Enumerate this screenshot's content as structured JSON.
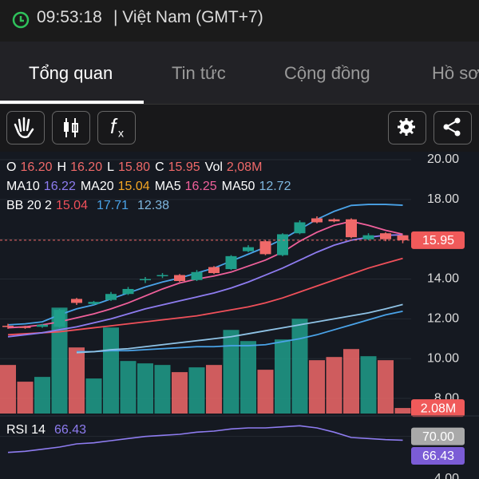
{
  "status_bar": {
    "time": "09:53:18",
    "zone": "| Việt Nam (GMT+7)"
  },
  "tabs": [
    "Tổng quan",
    "Tin tức",
    "Cộng đồng",
    "Hồ sơ"
  ],
  "chart_data": {
    "type": "candlestick",
    "legend": [
      [
        {
          "label": "O",
          "value": "16.20",
          "color": "#f06969"
        },
        {
          "label": "H",
          "value": "16.20",
          "color": "#f06969"
        },
        {
          "label": "L",
          "value": "15.80",
          "color": "#f06969"
        },
        {
          "label": "C",
          "value": "15.95",
          "color": "#f06969"
        },
        {
          "label": "Vol",
          "value": "2,08M",
          "color": "#f06969"
        }
      ],
      [
        {
          "label": "MA10",
          "value": "16.22",
          "color": "#8e7cf0"
        },
        {
          "label": "MA20",
          "value": "15.04",
          "color": "#f5a623"
        },
        {
          "label": "MA5",
          "value": "16.25",
          "color": "#f0609b"
        },
        {
          "label": "MA50",
          "value": "12.72",
          "color": "#7fb8e0"
        }
      ],
      [
        {
          "label": "BB 20 2",
          "value": "15.04",
          "color": "#f0505a"
        },
        {
          "label": "",
          "value": "17.71",
          "color": "#4aa3e8"
        },
        {
          "label": "",
          "value": "12.38",
          "color": "#7fb8e0"
        }
      ]
    ],
    "open": [
      11.65,
      11.6,
      11.6,
      11.6,
      13.0,
      12.75,
      12.95,
      13.25,
      13.95,
      14.15,
      14.2,
      13.95,
      14.6,
      14.5,
      15.4,
      15.9,
      15.2,
      16.3,
      17.05,
      17.0,
      17.0,
      16.0,
      16.3,
      16.2
    ],
    "close": [
      11.6,
      11.55,
      11.7,
      12.45,
      12.8,
      12.85,
      13.25,
      13.5,
      14.0,
      14.2,
      13.9,
      14.35,
      14.3,
      15.15,
      15.6,
      15.25,
      16.25,
      16.85,
      16.85,
      16.9,
      16.1,
      16.2,
      16.0,
      15.95
    ],
    "high": [
      11.75,
      11.65,
      11.75,
      12.5,
      13.05,
      12.9,
      13.35,
      13.6,
      14.1,
      14.3,
      14.25,
      14.45,
      14.65,
      15.2,
      15.7,
      15.95,
      16.3,
      16.95,
      17.15,
      17.05,
      17.05,
      16.3,
      16.35,
      16.2
    ],
    "low": [
      11.5,
      11.5,
      11.55,
      11.55,
      12.7,
      12.7,
      12.9,
      13.2,
      13.8,
      14.05,
      13.85,
      13.9,
      14.25,
      14.45,
      15.35,
      15.2,
      15.15,
      16.25,
      16.8,
      16.85,
      16.05,
      15.95,
      15.9,
      15.8
    ],
    "volume": [
      18.3,
      12.0,
      13.8,
      39.9,
      24.9,
      13.2,
      32.4,
      19.8,
      18.9,
      18.3,
      15.6,
      17.4,
      18.3,
      31.5,
      27.3,
      16.5,
      27.9,
      35.7,
      20.1,
      21.3,
      24.3,
      21.6,
      20.1,
      2.08
    ],
    "up_color": "#1f9e8a",
    "down_color": "#f06969",
    "series": [
      {
        "name": "BB upper",
        "color": "#4aa3e8",
        "values": [
          11.7,
          11.75,
          11.85,
          12.2,
          12.5,
          12.7,
          13.0,
          13.3,
          13.6,
          13.85,
          14.05,
          14.3,
          14.55,
          14.9,
          15.25,
          15.6,
          16.0,
          16.5,
          17.0,
          17.4,
          17.7,
          17.75,
          17.75,
          17.71
        ]
      },
      {
        "name": "BB lower",
        "color": "#4aa3e8",
        "values": [
          null,
          null,
          null,
          null,
          10.35,
          10.35,
          10.4,
          10.4,
          10.45,
          10.5,
          10.55,
          10.6,
          10.6,
          10.65,
          10.65,
          10.7,
          10.85,
          11.0,
          11.2,
          11.45,
          11.7,
          11.95,
          12.2,
          12.38
        ]
      },
      {
        "name": "MA50",
        "color": "#8fc3e6",
        "values": [
          null,
          null,
          null,
          null,
          10.3,
          10.35,
          10.45,
          10.5,
          10.6,
          10.7,
          10.8,
          10.9,
          11.0,
          11.1,
          11.25,
          11.4,
          11.55,
          11.7,
          11.85,
          12.0,
          12.15,
          12.3,
          12.5,
          12.72
        ]
      },
      {
        "name": "MA20",
        "color": "#f0505a",
        "values": [
          11.2,
          11.25,
          11.3,
          11.35,
          11.45,
          11.55,
          11.65,
          11.75,
          11.85,
          11.95,
          12.05,
          12.15,
          12.3,
          12.45,
          12.6,
          12.8,
          13.05,
          13.35,
          13.65,
          13.95,
          14.25,
          14.55,
          14.8,
          15.04
        ]
      },
      {
        "name": "MA10",
        "color": "#8e7cf0",
        "values": [
          11.1,
          11.2,
          11.3,
          11.45,
          11.6,
          11.8,
          12.0,
          12.25,
          12.5,
          12.7,
          12.9,
          13.1,
          13.3,
          13.55,
          13.85,
          14.2,
          14.55,
          14.95,
          15.35,
          15.7,
          15.95,
          16.1,
          16.2,
          16.22
        ]
      },
      {
        "name": "MA5",
        "color": "#f0609b",
        "values": [
          11.55,
          11.6,
          11.7,
          11.85,
          12.05,
          12.25,
          12.5,
          12.8,
          13.15,
          13.5,
          13.8,
          14.0,
          14.15,
          14.35,
          14.65,
          14.95,
          15.35,
          15.9,
          16.35,
          16.7,
          16.9,
          16.7,
          16.45,
          16.25
        ]
      }
    ],
    "ylim": [
      7.2,
      20.4
    ],
    "yticks": [
      {
        "value": 20,
        "label": "20.00"
      },
      {
        "value": 18,
        "label": "18.00"
      },
      {
        "value": 16,
        "label": "16.00"
      },
      {
        "value": 14,
        "label": "14.00"
      },
      {
        "value": 12,
        "label": "12.00"
      },
      {
        "value": 10,
        "label": "10.00"
      },
      {
        "value": 8,
        "label": "8.00"
      }
    ],
    "volume_ylim": [
      0,
      40
    ],
    "last_price": {
      "value": 15.95,
      "label": "15.95"
    },
    "last_volume": {
      "value": 2.08,
      "label": "2.08M"
    },
    "rsi": {
      "name": "RSI 14",
      "value_label": "66.43",
      "color": "#8e7cf0",
      "values": [
        55,
        56,
        58,
        60,
        63,
        64,
        66,
        68,
        70,
        71,
        72,
        74,
        75,
        77,
        78,
        78,
        79,
        80,
        78,
        74,
        69,
        68,
        67,
        66.43
      ],
      "ylim": [
        30,
        90
      ],
      "yticks": [
        {
          "value": 70,
          "label": "70.00"
        }
      ],
      "last": {
        "value": 66.43,
        "label": "66.43"
      },
      "partial_tick": "4.00"
    }
  }
}
